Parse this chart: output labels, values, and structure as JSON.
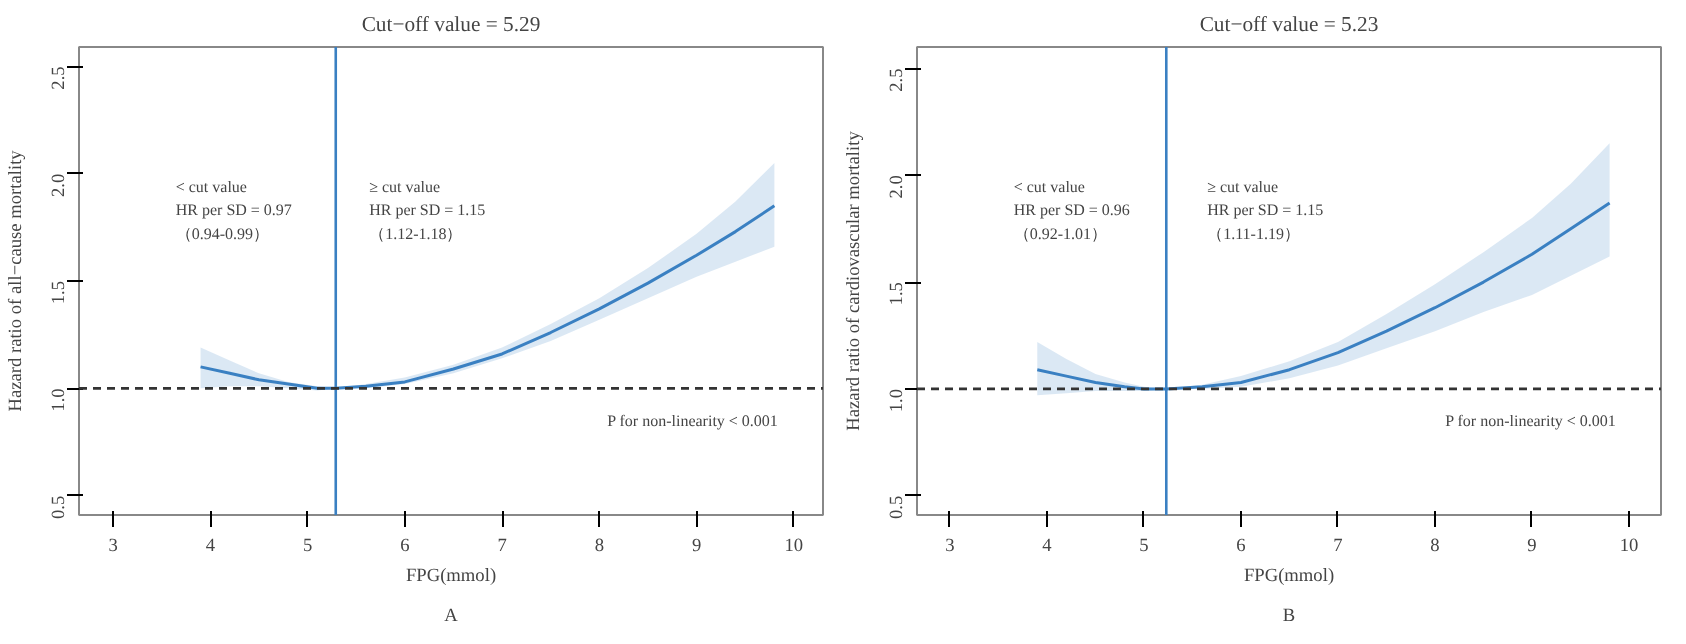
{
  "chart_data": [
    {
      "type": "line",
      "title": "Cut−off value = 5.29",
      "xlabel": "FPG(mmol)",
      "ylabel": "Hazard ratio of all−cause mortality",
      "x": [
        3.9,
        4.2,
        4.5,
        4.8,
        5.1,
        5.29,
        5.6,
        6,
        6.5,
        7,
        7.5,
        8,
        8.5,
        9,
        9.4,
        9.8
      ],
      "series": [
        {
          "color": "#3a80c2",
          "values": [
            1.1,
            1.07,
            1.04,
            1.02,
            1.0,
            1.0,
            1.01,
            1.03,
            1.09,
            1.16,
            1.26,
            1.37,
            1.49,
            1.62,
            1.73,
            1.85
          ],
          "upper": [
            1.19,
            1.13,
            1.07,
            1.03,
            1.01,
            1.0,
            1.02,
            1.05,
            1.11,
            1.19,
            1.3,
            1.42,
            1.56,
            1.72,
            1.87,
            2.05
          ],
          "lower": [
            1.0,
            1.01,
            1.01,
            1.0,
            0.99,
            1.0,
            1.0,
            1.02,
            1.07,
            1.14,
            1.22,
            1.32,
            1.42,
            1.52,
            1.59,
            1.66
          ]
        }
      ],
      "xlim": [
        2.65,
        10.3
      ],
      "ylim": [
        0.41,
        2.59
      ],
      "xticks": [
        3,
        4,
        5,
        6,
        7,
        8,
        9,
        10
      ],
      "yticks": [
        {
          "value": 0.5,
          "label": "0.5"
        },
        {
          "value": 1,
          "label": "1.0"
        },
        {
          "value": 1.5,
          "label": "1.5"
        },
        {
          "value": 2,
          "label": "2.0"
        },
        {
          "value": 2.5,
          "label": "2.5"
        }
      ],
      "ref_lines": [
        {
          "axis": "x",
          "value": 5.29,
          "color": "#3a80c2",
          "line_style": "solid"
        },
        {
          "axis": "y",
          "value": 1,
          "color": "#333333",
          "line_style": "dashed"
        }
      ],
      "annotations": [
        "< cut value\nHR per SD = 0.97\n（0.94-0.99）",
        "≥ cut value\nHR per SD = 1.15\n（1.12-1.18）",
        "P for non-linearity < 0.001",
        "A"
      ],
      "grid": false
    },
    {
      "type": "line",
      "title": "Cut−off value = 5.23",
      "xlabel": "FPG(mmol)",
      "ylabel": "Hazard ratio of cardiovascular mortality",
      "x": [
        3.9,
        4.2,
        4.5,
        4.8,
        5.0,
        5.23,
        5.6,
        6,
        6.5,
        7,
        7.5,
        8,
        8.5,
        9,
        9.4,
        9.8
      ],
      "series": [
        {
          "color": "#3a80c2",
          "values": [
            1.09,
            1.06,
            1.03,
            1.01,
            1.0,
            1.0,
            1.01,
            1.03,
            1.09,
            1.17,
            1.27,
            1.38,
            1.5,
            1.63,
            1.75,
            1.87
          ],
          "upper": [
            1.22,
            1.14,
            1.07,
            1.03,
            1.01,
            1.0,
            1.02,
            1.06,
            1.13,
            1.22,
            1.35,
            1.49,
            1.64,
            1.8,
            1.96,
            2.15
          ],
          "lower": [
            0.97,
            0.98,
            0.99,
            0.99,
            0.99,
            1.0,
            1.0,
            1.01,
            1.05,
            1.11,
            1.19,
            1.27,
            1.36,
            1.44,
            1.53,
            1.62
          ]
        }
      ],
      "xlim": [
        2.66,
        10.33
      ],
      "ylim": [
        0.41,
        2.6
      ],
      "xticks": [
        3,
        4,
        5,
        6,
        7,
        8,
        9,
        10
      ],
      "yticks": [
        {
          "value": 0.5,
          "label": "0.5"
        },
        {
          "value": 1,
          "label": "1.0"
        },
        {
          "value": 1.5,
          "label": "1.5"
        },
        {
          "value": 2,
          "label": "2.0"
        },
        {
          "value": 2.5,
          "label": "2.5"
        }
      ],
      "ref_lines": [
        {
          "axis": "x",
          "value": 5.23,
          "color": "#3a80c2",
          "line_style": "solid"
        },
        {
          "axis": "y",
          "value": 1,
          "color": "#333333",
          "line_style": "dashed"
        }
      ],
      "annotations": [
        "< cut value\nHR per SD = 0.96\n（0.92-1.01）",
        "≥ cut value\nHR per SD = 1.15\n（1.11-1.19）",
        "P for non-linearity < 0.001",
        "B"
      ],
      "grid": false
    }
  ]
}
